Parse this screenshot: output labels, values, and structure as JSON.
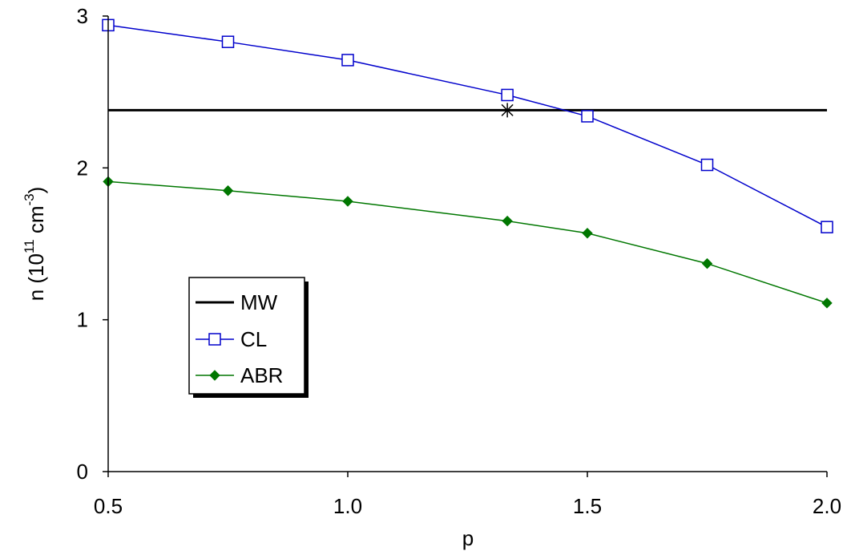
{
  "chart_data": {
    "type": "line",
    "xlabel": "p",
    "ylabel": "n (10",
    "ylabel_sup1": "11",
    "ylabel_mid": " cm",
    "ylabel_sup2": "-3",
    "ylabel_end": ")",
    "xlim": [
      0.5,
      2.0
    ],
    "ylim": [
      0,
      3
    ],
    "x_ticks": [
      "0.5",
      "1.0",
      "1.5",
      "2.0"
    ],
    "y_ticks": [
      "0",
      "1",
      "2",
      "3"
    ],
    "grid": false,
    "legend_position": "left-center",
    "series": [
      {
        "name": "MW",
        "type": "hline",
        "y": 2.38,
        "color": "#000000",
        "marker": "none"
      },
      {
        "name": "CL",
        "color": "#0000cc",
        "marker": "open-square",
        "x": [
          0.5,
          0.75,
          1.0,
          1.333,
          1.5,
          1.75,
          2.0
        ],
        "y": [
          2.94,
          2.83,
          2.71,
          2.48,
          2.34,
          2.02,
          1.61
        ]
      },
      {
        "name": "ABR",
        "color": "#007700",
        "marker": "filled-diamond",
        "x": [
          0.5,
          0.75,
          1.0,
          1.333,
          1.5,
          1.75,
          2.0
        ],
        "y": [
          1.91,
          1.85,
          1.78,
          1.65,
          1.57,
          1.37,
          1.11
        ]
      }
    ],
    "annotations": [
      {
        "type": "star-marker",
        "x": 1.333,
        "y": 2.38,
        "color": "#000000"
      }
    ]
  }
}
